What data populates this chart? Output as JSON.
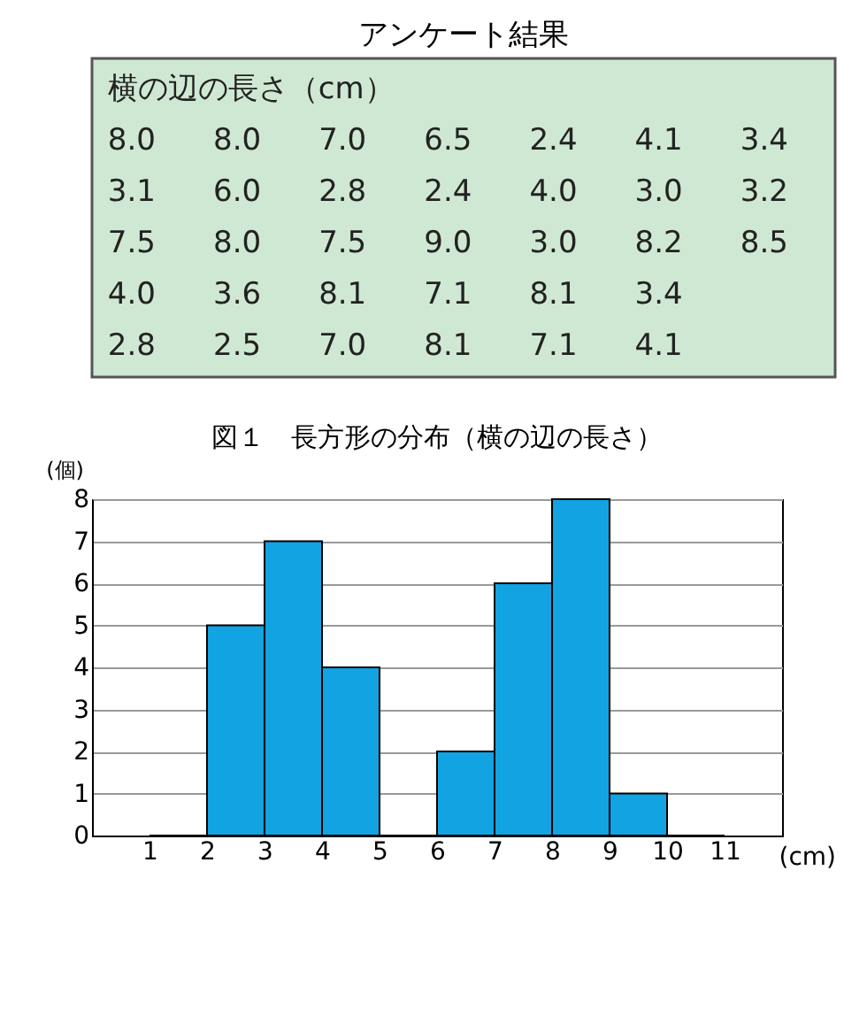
{
  "chart_data": [
    {
      "type": "other",
      "title": "アンケート結果",
      "color": "#cfe8d3",
      "annotations": [
        "横の辺の長さ（cm）",
        "8.0",
        "8.0",
        "7.0",
        "6.5",
        "2.4",
        "4.1",
        "3.4",
        "3.1",
        "6.0",
        "2.8",
        "2.4",
        "4.0",
        "3.0",
        "3.2",
        "7.5",
        "8.0",
        "7.5",
        "9.0",
        "3.0",
        "8.2",
        "8.5",
        "4.0",
        "3.6",
        "8.1",
        "7.1",
        "8.1",
        "3.4",
        null,
        "2.8",
        "2.5",
        "7.0",
        "8.1",
        "7.1",
        "4.1",
        null
      ]
    },
    {
      "type": "histogram",
      "title": "図１　長方形の分布（横の辺の長さ）",
      "xlabel": "(cm)",
      "ylabel": "(個)",
      "bins": [
        1,
        2,
        3,
        4,
        5,
        6,
        7,
        8,
        9,
        10,
        11
      ],
      "values": [
        0,
        5,
        7,
        4,
        0,
        2,
        6,
        8,
        1,
        0
      ],
      "color": "#11a3e2",
      "xlim": [
        0,
        12
      ],
      "xticks": [
        1,
        2,
        3,
        4,
        5,
        6,
        7,
        8,
        9,
        10,
        11
      ],
      "ylim": [
        0,
        8
      ],
      "yticks": [
        0,
        1,
        2,
        3,
        4,
        5,
        6,
        7,
        8
      ],
      "grid": "y"
    }
  ]
}
